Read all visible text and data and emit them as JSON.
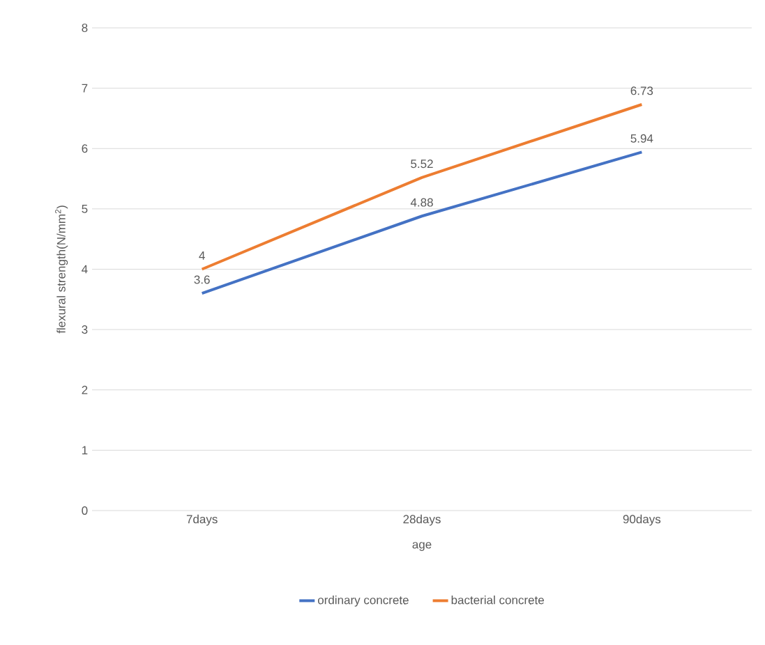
{
  "chart_data": {
    "type": "line",
    "xlabel": "age",
    "ylabel": "flexural strength(N/mm$^{2}$)",
    "categories": [
      "7days",
      "28days",
      "90days"
    ],
    "series": [
      {
        "name": "ordinary concrete",
        "color": "#4472c4",
        "values": [
          3.6,
          4.88,
          5.94
        ]
      },
      {
        "name": "bacterial concrete",
        "color": "#ed7d31",
        "values": [
          4,
          5.52,
          6.73
        ]
      }
    ],
    "ylim": [
      0,
      8
    ],
    "yticks": [
      0,
      1,
      2,
      3,
      4,
      5,
      6,
      7,
      8
    ],
    "grid": "y",
    "legend": "bottom",
    "data_labels": true,
    "marker": "none",
    "line_style": "solid"
  }
}
